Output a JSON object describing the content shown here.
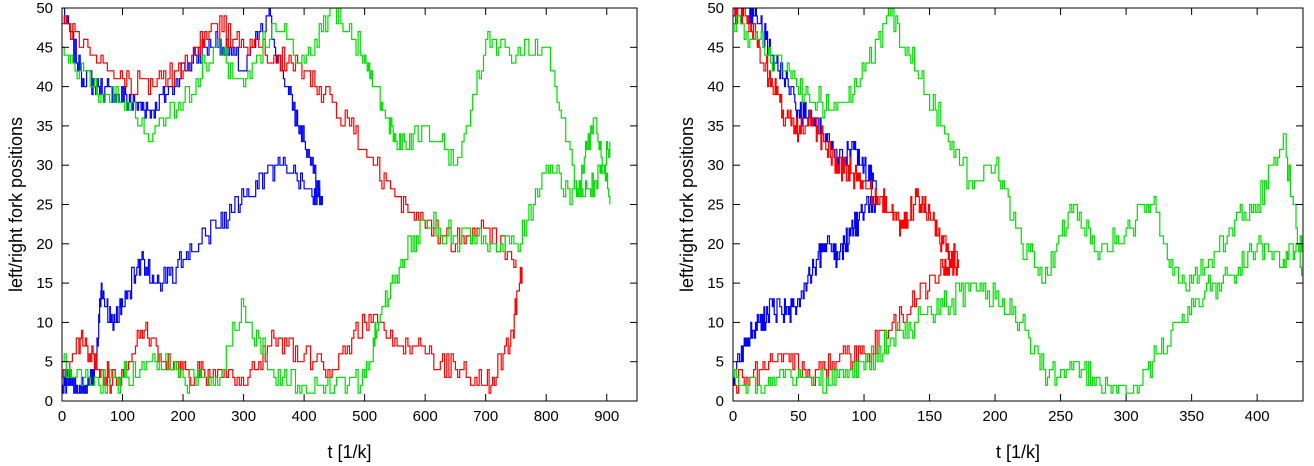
{
  "chart_data": [
    {
      "type": "line",
      "title": "",
      "xlabel": "t [1/k]",
      "ylabel": "left/right fork positions",
      "xlim": [
        0,
        950
      ],
      "ylim": [
        0,
        50
      ],
      "xticks": [
        0,
        100,
        200,
        300,
        400,
        500,
        600,
        700,
        800,
        900
      ],
      "yticks": [
        0,
        5,
        10,
        15,
        20,
        25,
        30,
        35,
        40,
        45,
        50
      ],
      "grid": false,
      "legend": "none",
      "series_colors": [
        "#0000ff",
        "#ff0000",
        "#00dd00"
      ],
      "series": [
        {
          "color": "#0000ff",
          "x": [
            0,
            30,
            60,
            90,
            120,
            150,
            180,
            220,
            260,
            300,
            340,
            370,
            400,
            430
          ],
          "y": [
            50,
            42,
            40,
            39,
            38,
            37,
            40,
            44,
            46,
            42,
            49,
            40,
            33,
            25
          ]
        },
        {
          "color": "#0000ff",
          "x": [
            0,
            15,
            30,
            45,
            55,
            65,
            80,
            100,
            130,
            160,
            200,
            240,
            280,
            320,
            360,
            400,
            430
          ],
          "y": [
            2,
            3,
            1,
            2,
            4,
            15,
            10,
            12,
            18,
            15,
            18,
            21,
            24,
            28,
            30,
            27,
            26
          ]
        },
        {
          "color": "#ff0000",
          "x": [
            0,
            50,
            100,
            150,
            200,
            250,
            300,
            350,
            400,
            450,
            500,
            550,
            600,
            650,
            700,
            750
          ],
          "y": [
            48,
            44,
            41,
            40,
            42,
            48,
            45,
            44,
            42,
            38,
            32,
            26,
            22,
            20,
            22,
            18
          ]
        },
        {
          "color": "#ff0000",
          "x": [
            0,
            30,
            60,
            90,
            130,
            170,
            210,
            250,
            300,
            350,
            400,
            450,
            500,
            550,
            600,
            650,
            700,
            740,
            760
          ],
          "y": [
            3,
            8,
            4,
            2,
            9,
            5,
            3,
            4,
            2,
            8,
            6,
            4,
            10,
            8,
            6,
            4,
            2,
            7,
            17
          ]
        },
        {
          "color": "#00dd00",
          "x": [
            0,
            50,
            100,
            150,
            200,
            250,
            300,
            350,
            400,
            450,
            500,
            530,
            560,
            600,
            650,
            700,
            750,
            800,
            850,
            880,
            905
          ],
          "y": [
            45,
            40,
            38,
            34,
            38,
            45,
            40,
            48,
            43,
            50,
            44,
            37,
            32,
            35,
            30,
            46,
            44,
            45,
            27,
            36,
            25
          ]
        },
        {
          "color": "#00dd00",
          "x": [
            0,
            50,
            100,
            150,
            200,
            250,
            300,
            350,
            400,
            450,
            500,
            520,
            560,
            600,
            650,
            700,
            750,
            800,
            850,
            880,
            905
          ],
          "y": [
            5,
            2,
            3,
            6,
            3,
            2,
            12,
            3,
            2,
            2,
            3,
            9,
            18,
            23,
            21,
            20,
            20,
            30,
            26,
            28,
            33
          ]
        }
      ]
    },
    {
      "type": "line",
      "title": "",
      "xlabel": "t [1/k]",
      "ylabel": "left/right fork positions",
      "xlim": [
        0,
        435
      ],
      "ylim": [
        0,
        50
      ],
      "xticks": [
        0,
        50,
        100,
        150,
        200,
        250,
        300,
        350,
        400
      ],
      "yticks": [
        0,
        5,
        10,
        15,
        20,
        25,
        30,
        35,
        40,
        45,
        50
      ],
      "grid": false,
      "legend": "none",
      "series_colors": [
        "#0000ff",
        "#ff0000",
        "#00dd00"
      ],
      "series": [
        {
          "color": "#0000ff",
          "x": [
            0,
            10,
            20,
            30,
            40,
            50,
            60,
            70,
            80,
            90,
            100,
            110
          ],
          "y": [
            49,
            50,
            48,
            44,
            41,
            37,
            36,
            33,
            31,
            32,
            30,
            27
          ]
        },
        {
          "color": "#0000ff",
          "x": [
            0,
            10,
            20,
            30,
            40,
            50,
            60,
            70,
            80,
            90,
            100,
            110
          ],
          "y": [
            3,
            8,
            10,
            12,
            11,
            13,
            16,
            20,
            18,
            22,
            24,
            26
          ]
        },
        {
          "color": "#ff0000",
          "x": [
            0,
            10,
            20,
            30,
            40,
            50,
            60,
            70,
            80,
            90,
            100,
            110,
            120,
            130,
            140,
            150,
            160,
            172
          ],
          "y": [
            50,
            49,
            45,
            40,
            36,
            34,
            36,
            33,
            30,
            29,
            28,
            26,
            24,
            22,
            26,
            24,
            20,
            18
          ]
        },
        {
          "color": "#ff0000",
          "x": [
            0,
            20,
            40,
            60,
            80,
            100,
            120,
            140,
            160,
            172
          ],
          "y": [
            2,
            4,
            6,
            3,
            5,
            6,
            9,
            13,
            17,
            18
          ]
        },
        {
          "color": "#00dd00",
          "x": [
            0,
            20,
            40,
            60,
            80,
            100,
            120,
            140,
            160,
            180,
            200,
            220,
            240,
            260,
            280,
            300,
            320,
            340,
            360,
            380,
            400,
            420,
            435
          ],
          "y": [
            48,
            46,
            42,
            38,
            38,
            42,
            49,
            42,
            35,
            28,
            30,
            20,
            16,
            25,
            19,
            22,
            25,
            15,
            17,
            22,
            25,
            34,
            15
          ]
        },
        {
          "color": "#00dd00",
          "x": [
            0,
            20,
            40,
            60,
            80,
            100,
            120,
            140,
            160,
            180,
            200,
            220,
            240,
            260,
            280,
            300,
            320,
            340,
            360,
            380,
            400,
            420,
            435
          ],
          "y": [
            3,
            2,
            4,
            2,
            3,
            4,
            8,
            10,
            12,
            14,
            13,
            10,
            3,
            5,
            2,
            1,
            5,
            10,
            14,
            16,
            20,
            18,
            20
          ]
        }
      ]
    }
  ]
}
